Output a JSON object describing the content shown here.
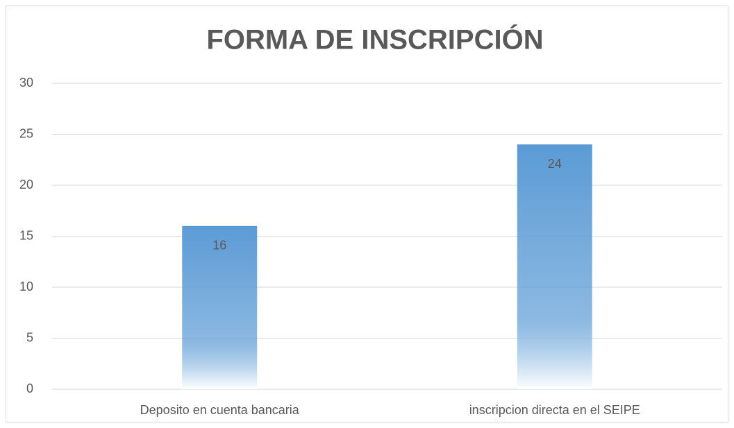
{
  "chart_data": {
    "type": "bar",
    "title": "FORMA DE INSCRIPCIÓN",
    "categories": [
      "Deposito en cuenta bancaria",
      "inscripcion directa en el SEIPE"
    ],
    "values": [
      16,
      24
    ],
    "color": "#5b9bd5",
    "ylim": [
      0,
      30
    ],
    "yticks": [
      0,
      5,
      10,
      15,
      20,
      25,
      30
    ],
    "grid": true
  }
}
